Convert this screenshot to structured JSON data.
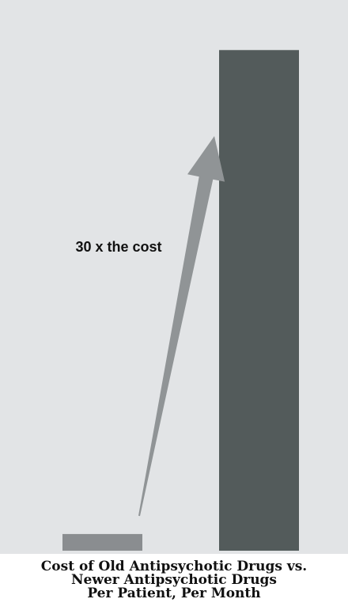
{
  "chart_data": {
    "type": "bar",
    "categories": [
      "Old Antipsychotic Drugs",
      "Newer Antipsychotic Drugs"
    ],
    "values": [
      1,
      30
    ],
    "ylim": [
      0,
      33
    ],
    "grid": false,
    "annotations": [
      {
        "text": "30 x the cost",
        "type": "arrow",
        "from_category": 0,
        "to_category": 1
      }
    ],
    "title_lines": [
      "Cost of Old Antipsychotic Drugs vs.",
      "Newer Antipsychotic Drugs",
      "Per Patient, Per Month"
    ]
  },
  "colors": {
    "background": "#e2e4e6",
    "old_bar": "#8a8d90",
    "new_bar": "#535b5b",
    "arrow": "#909496",
    "text": "#111111"
  }
}
